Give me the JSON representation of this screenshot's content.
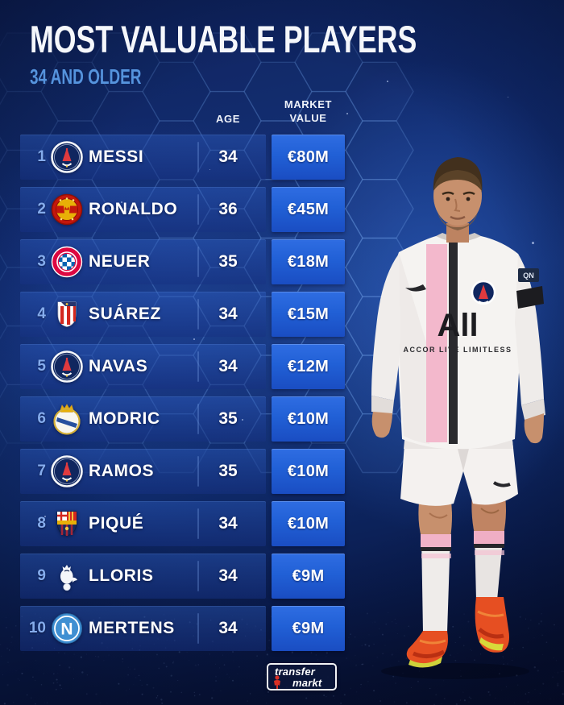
{
  "header": {
    "title": "MOST VALUABLE PLAYERS",
    "subtitle": "34 AND OLDER"
  },
  "columns": {
    "age": "AGE",
    "market_value_line1": "MARKET",
    "market_value_line2": "VALUE"
  },
  "table": {
    "rows": [
      {
        "rank": "1",
        "club": "psg",
        "club_icon": "psg-badge-icon",
        "player": "MESSI",
        "age": "34",
        "value": "€80M"
      },
      {
        "rank": "2",
        "club": "manchester-united",
        "club_icon": "man-united-badge-icon",
        "player": "RONALDO",
        "age": "36",
        "value": "€45M"
      },
      {
        "rank": "3",
        "club": "bayern-munich",
        "club_icon": "bayern-badge-icon",
        "player": "NEUER",
        "age": "35",
        "value": "€18M"
      },
      {
        "rank": "4",
        "club": "atletico-madrid",
        "club_icon": "atletico-badge-icon",
        "player": "SUÁREZ",
        "age": "34",
        "value": "€15M"
      },
      {
        "rank": "5",
        "club": "psg",
        "club_icon": "psg-badge-icon",
        "player": "NAVAS",
        "age": "34",
        "value": "€12M"
      },
      {
        "rank": "6",
        "club": "real-madrid",
        "club_icon": "real-madrid-badge-icon",
        "player": "MODRIC",
        "age": "35",
        "value": "€10M"
      },
      {
        "rank": "7",
        "club": "psg",
        "club_icon": "psg-badge-icon",
        "player": "RAMOS",
        "age": "35",
        "value": "€10M"
      },
      {
        "rank": "8",
        "club": "barcelona",
        "club_icon": "barcelona-badge-icon",
        "player": "PIQUÉ",
        "age": "34",
        "value": "€10M"
      },
      {
        "rank": "9",
        "club": "tottenham",
        "club_icon": "tottenham-badge-icon",
        "player": "LLORIS",
        "age": "34",
        "value": "€9M"
      },
      {
        "rank": "10",
        "club": "napoli",
        "club_icon": "napoli-badge-icon",
        "player": "MERTENS",
        "age": "34",
        "value": "€9M"
      }
    ]
  },
  "jersey": {
    "sponsor": "All",
    "sponsor_sub": "ACCOR LIVE LIMITLESS",
    "sleeve_patch": "QN"
  },
  "watermark": {
    "line1": "transfer",
    "line2": "markt"
  },
  "colors": {
    "background_navy": "#0d2057",
    "value_box_blue": "#1e5bd1",
    "subtitle_blue": "#5593dd",
    "rank_blue": "#85acec",
    "jersey_pink": "#f3b8cc",
    "boot_orange": "#e64f22"
  }
}
